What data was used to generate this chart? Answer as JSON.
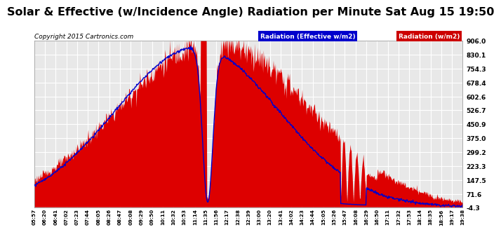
{
  "title": "Solar & Effective (w/Incidence Angle) Radiation per Minute Sat Aug 15 19:50",
  "copyright": "Copyright 2015 Cartronics.com",
  "legend1": "Radiation (Effective w/m2)",
  "legend2": "Radiation (w/m2)",
  "yticks": [
    906.0,
    830.1,
    754.3,
    678.4,
    602.6,
    526.7,
    450.9,
    375.0,
    299.2,
    223.3,
    147.5,
    71.6,
    -4.3
  ],
  "ymin": -4.3,
  "ymax": 906.0,
  "bg_color": "#ffffff",
  "plot_bg": "#e8e8e8",
  "grid_color": "#ffffff",
  "fill_color": "#dd0000",
  "line_color": "#0000cc",
  "title_fontsize": 12,
  "xtick_labels": [
    "05:57",
    "06:20",
    "06:41",
    "07:02",
    "07:23",
    "07:44",
    "08:05",
    "08:26",
    "08:47",
    "09:08",
    "09:29",
    "09:50",
    "10:11",
    "10:32",
    "10:53",
    "11:14",
    "11:35",
    "11:56",
    "12:17",
    "12:38",
    "12:39",
    "13:00",
    "13:20",
    "13:41",
    "14:02",
    "14:23",
    "14:44",
    "15:05",
    "15:26",
    "15:47",
    "16:08",
    "16:29",
    "16:50",
    "17:11",
    "17:32",
    "17:53",
    "18:14",
    "18:35",
    "18:56",
    "19:17",
    "19:38"
  ]
}
